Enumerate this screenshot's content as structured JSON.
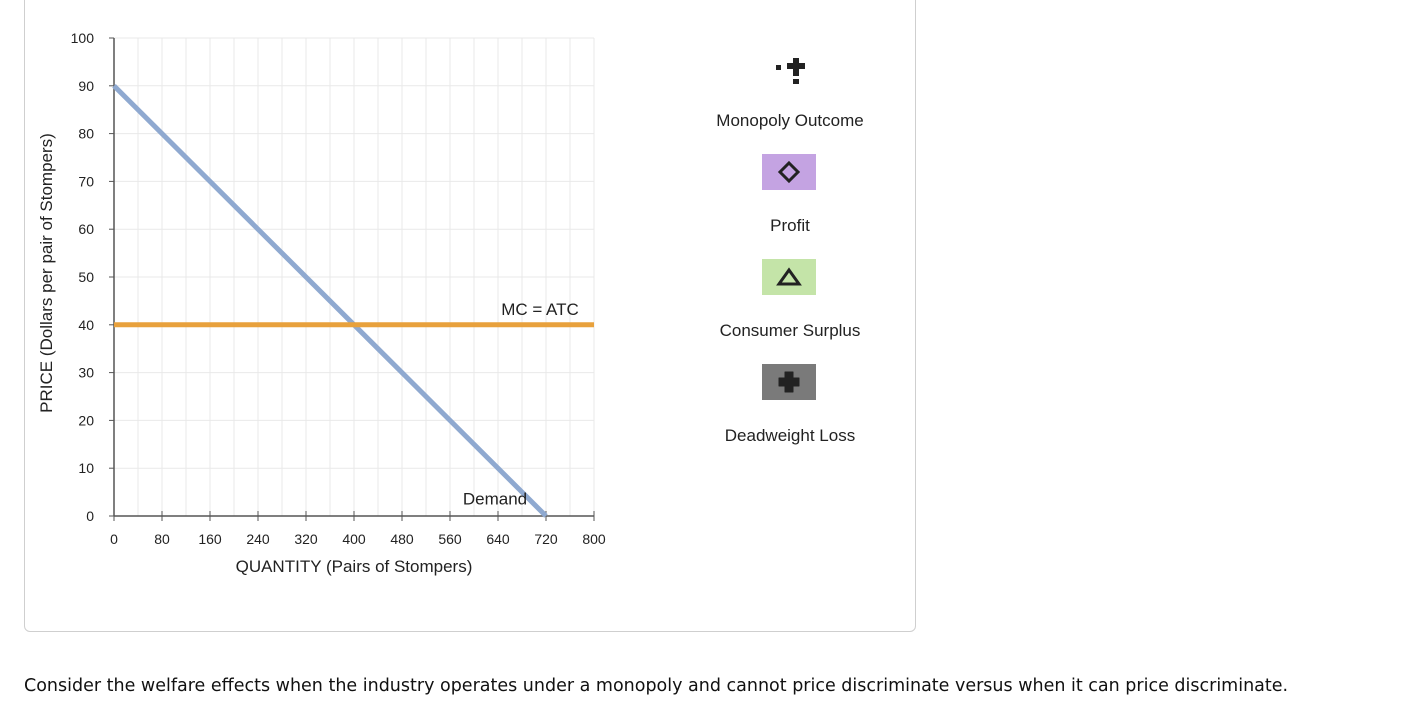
{
  "chart_data": {
    "type": "line",
    "title": "",
    "xlabel": "QUANTITY (Pairs of Stompers)",
    "ylabel": "PRICE (Dollars per pair of Stompers)",
    "xlim": [
      0,
      800
    ],
    "ylim": [
      0,
      100
    ],
    "x_ticks": [
      0,
      80,
      160,
      240,
      320,
      400,
      480,
      560,
      640,
      720,
      800
    ],
    "y_ticks": [
      0,
      10,
      20,
      30,
      40,
      50,
      60,
      70,
      80,
      90,
      100
    ],
    "grid": true,
    "series": [
      {
        "name": "Demand",
        "color": "#8fa9d0",
        "points": [
          [
            0,
            90
          ],
          [
            720,
            0
          ]
        ]
      },
      {
        "name": "MC = ATC",
        "color": "#e8a13c",
        "points": [
          [
            0,
            40
          ],
          [
            800,
            40
          ]
        ]
      }
    ]
  },
  "tools": [
    {
      "label": "Monopoly Outcome",
      "icon": "plus-point-icon",
      "bg": "",
      "color": "#222222"
    },
    {
      "label": "Profit",
      "icon": "diamond-icon",
      "bg": "#c4a3e2",
      "color": "#222222"
    },
    {
      "label": "Consumer Surplus",
      "icon": "triangle-icon",
      "bg": "#c4e4a8",
      "color": "#222222"
    },
    {
      "label": "Deadweight Loss",
      "icon": "cross-icon",
      "bg": "#7a7a7a",
      "color": "#222222"
    }
  ],
  "question": "Consider the welfare effects when the industry operates under a monopoly and cannot price discriminate versus when it can price discriminate."
}
